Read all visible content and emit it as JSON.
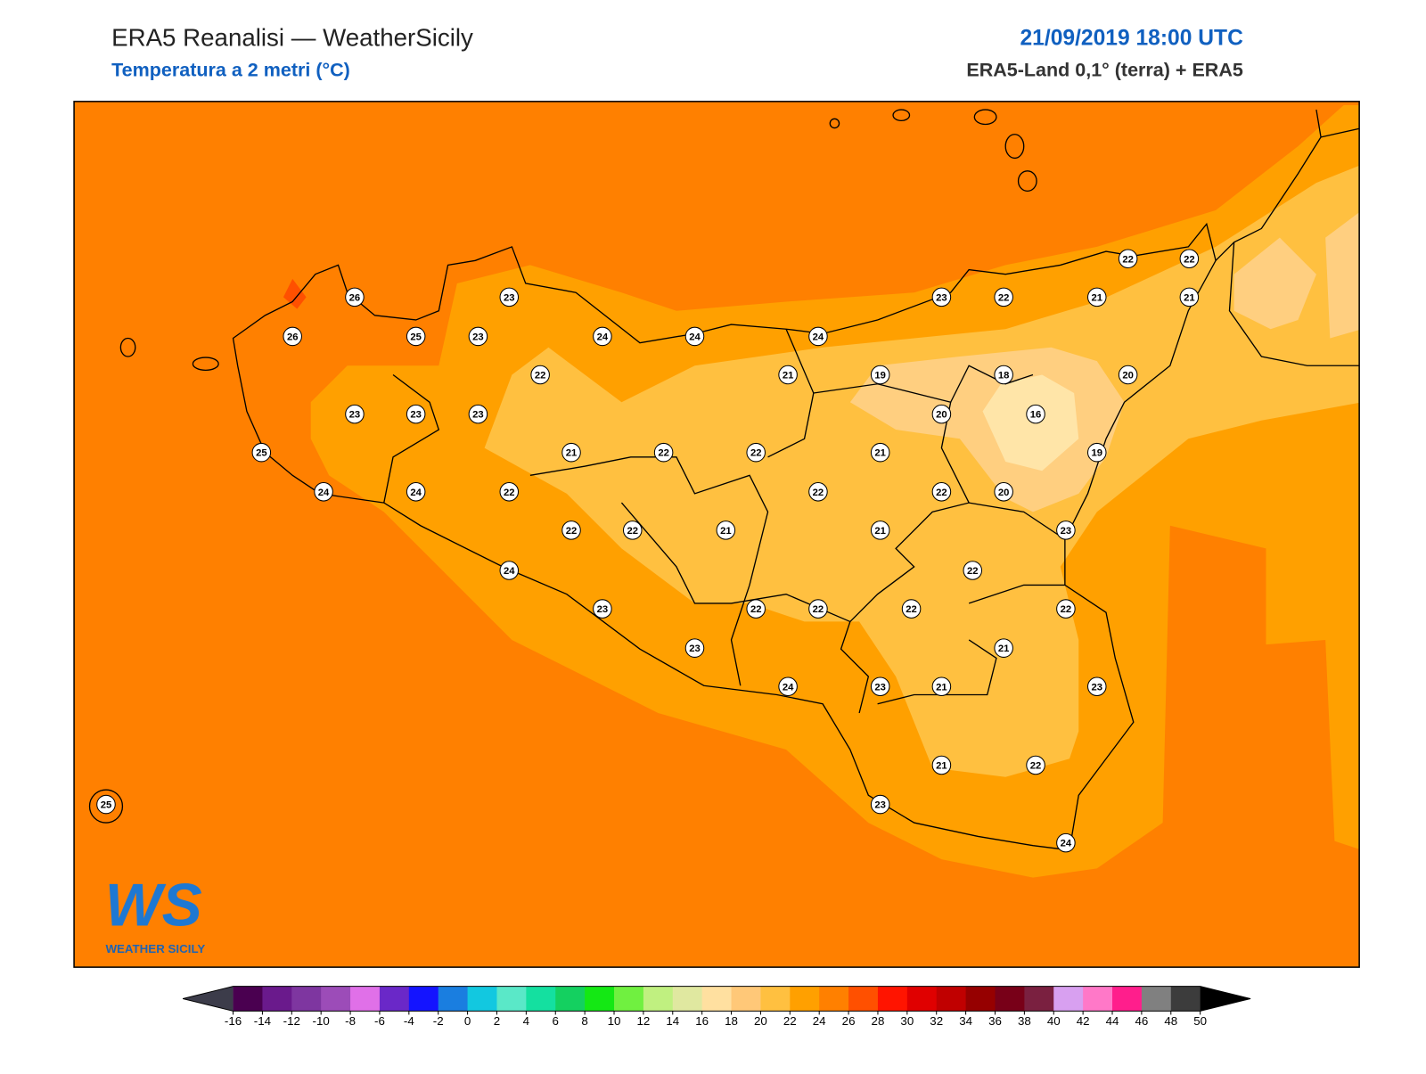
{
  "header": {
    "title": "ERA5 Reanalisi — WeatherSicily",
    "subtitle": "Temperatura a 2 metri (°C)",
    "datetime": "21/09/2019 18:00 UTC",
    "source": "ERA5-Land 0,1° (terra) + ERA5"
  },
  "stations": [
    26,
    23,
    26,
    25,
    23,
    24,
    24,
    24,
    22,
    21,
    19,
    18,
    20,
    23,
    23,
    23,
    20,
    16,
    25,
    21,
    22,
    22,
    21,
    19,
    24,
    24,
    22,
    22,
    22,
    20,
    22,
    22,
    21,
    21,
    23,
    24,
    22,
    23,
    22,
    22,
    22,
    22,
    23,
    21,
    24,
    23,
    21,
    23,
    21,
    22,
    23,
    24,
    25,
    22,
    22,
    23,
    22,
    21,
    21
  ],
  "colorbar": {
    "ticks": [
      -16,
      -14,
      -12,
      -10,
      -8,
      -6,
      -4,
      -2,
      0,
      2,
      4,
      6,
      8,
      10,
      12,
      14,
      16,
      18,
      20,
      22,
      24,
      26,
      28,
      30,
      32,
      34,
      36,
      38,
      40,
      42,
      44,
      46,
      48,
      50
    ],
    "colors": [
      "#4a0050",
      "#6a1a8c",
      "#7e36a0",
      "#9c4cb8",
      "#e070e8",
      "#6a28c8",
      "#1414ff",
      "#1a7ee0",
      "#12c8e0",
      "#5ae8c8",
      "#14e0a0",
      "#14d060",
      "#14e814",
      "#70f040",
      "#c0f080",
      "#e0e8a0",
      "#ffe0a0",
      "#ffc878",
      "#ffc040",
      "#ffa000",
      "#ff8000",
      "#ff5000",
      "#ff1400",
      "#e00000",
      "#c00000",
      "#960000",
      "#780018",
      "#7a2040",
      "#d8a0f0",
      "#ff78c8",
      "#ff1e8c",
      "#808080",
      "#3c3c3c"
    ],
    "under_color": "#3c3c4a",
    "over_color": "#000000"
  },
  "logo": {
    "mark": "WS",
    "name": "WEATHER SICILY"
  }
}
